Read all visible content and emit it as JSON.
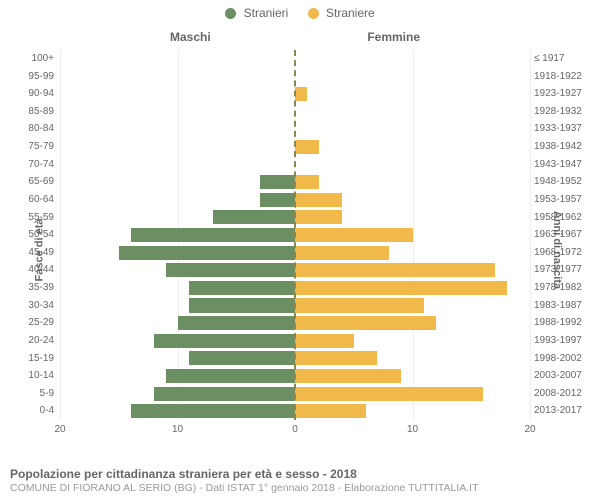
{
  "legend": {
    "male": {
      "label": "Stranieri",
      "color": "#6b8e63"
    },
    "female": {
      "label": "Straniere",
      "color": "#f0b94a"
    }
  },
  "headers": {
    "left": "Maschi",
    "right": "Femmine"
  },
  "y_axis_left_title": "Fasce di età",
  "y_axis_right_title": "Anni di nascita",
  "x_axis": {
    "min": -20,
    "max": 20,
    "ticks": [
      20,
      10,
      0,
      10,
      20
    ],
    "tick_positions_pct": [
      0,
      25,
      50,
      75,
      100
    ]
  },
  "background_color": "#ffffff",
  "grid_color": "#eeeeee",
  "center_line_color": "#888855",
  "rows": [
    {
      "age": "100+",
      "year": "≤ 1917",
      "m": 0,
      "f": 0
    },
    {
      "age": "95-99",
      "year": "1918-1922",
      "m": 0,
      "f": 0
    },
    {
      "age": "90-94",
      "year": "1923-1927",
      "m": 0,
      "f": 1
    },
    {
      "age": "85-89",
      "year": "1928-1932",
      "m": 0,
      "f": 0
    },
    {
      "age": "80-84",
      "year": "1933-1937",
      "m": 0,
      "f": 0
    },
    {
      "age": "75-79",
      "year": "1938-1942",
      "m": 0,
      "f": 2
    },
    {
      "age": "70-74",
      "year": "1943-1947",
      "m": 0,
      "f": 0
    },
    {
      "age": "65-69",
      "year": "1948-1952",
      "m": 3,
      "f": 2
    },
    {
      "age": "60-64",
      "year": "1953-1957",
      "m": 3,
      "f": 4
    },
    {
      "age": "55-59",
      "year": "1958-1962",
      "m": 7,
      "f": 4
    },
    {
      "age": "50-54",
      "year": "1963-1967",
      "m": 14,
      "f": 10
    },
    {
      "age": "45-49",
      "year": "1968-1972",
      "m": 15,
      "f": 8
    },
    {
      "age": "40-44",
      "year": "1973-1977",
      "m": 11,
      "f": 17
    },
    {
      "age": "35-39",
      "year": "1978-1982",
      "m": 9,
      "f": 18
    },
    {
      "age": "30-34",
      "year": "1983-1987",
      "m": 9,
      "f": 11
    },
    {
      "age": "25-29",
      "year": "1988-1992",
      "m": 10,
      "f": 12
    },
    {
      "age": "20-24",
      "year": "1993-1997",
      "m": 12,
      "f": 5
    },
    {
      "age": "15-19",
      "year": "1998-2002",
      "m": 9,
      "f": 7
    },
    {
      "age": "10-14",
      "year": "2003-2007",
      "m": 11,
      "f": 9
    },
    {
      "age": "5-9",
      "year": "2008-2012",
      "m": 12,
      "f": 16
    },
    {
      "age": "0-4",
      "year": "2013-2017",
      "m": 14,
      "f": 6
    }
  ],
  "footer": {
    "title": "Popolazione per cittadinanza straniera per età e sesso - 2018",
    "subtitle": "COMUNE DI FIORANO AL SERIO (BG) - Dati ISTAT 1° gennaio 2018 - Elaborazione TUTTITALIA.IT"
  }
}
